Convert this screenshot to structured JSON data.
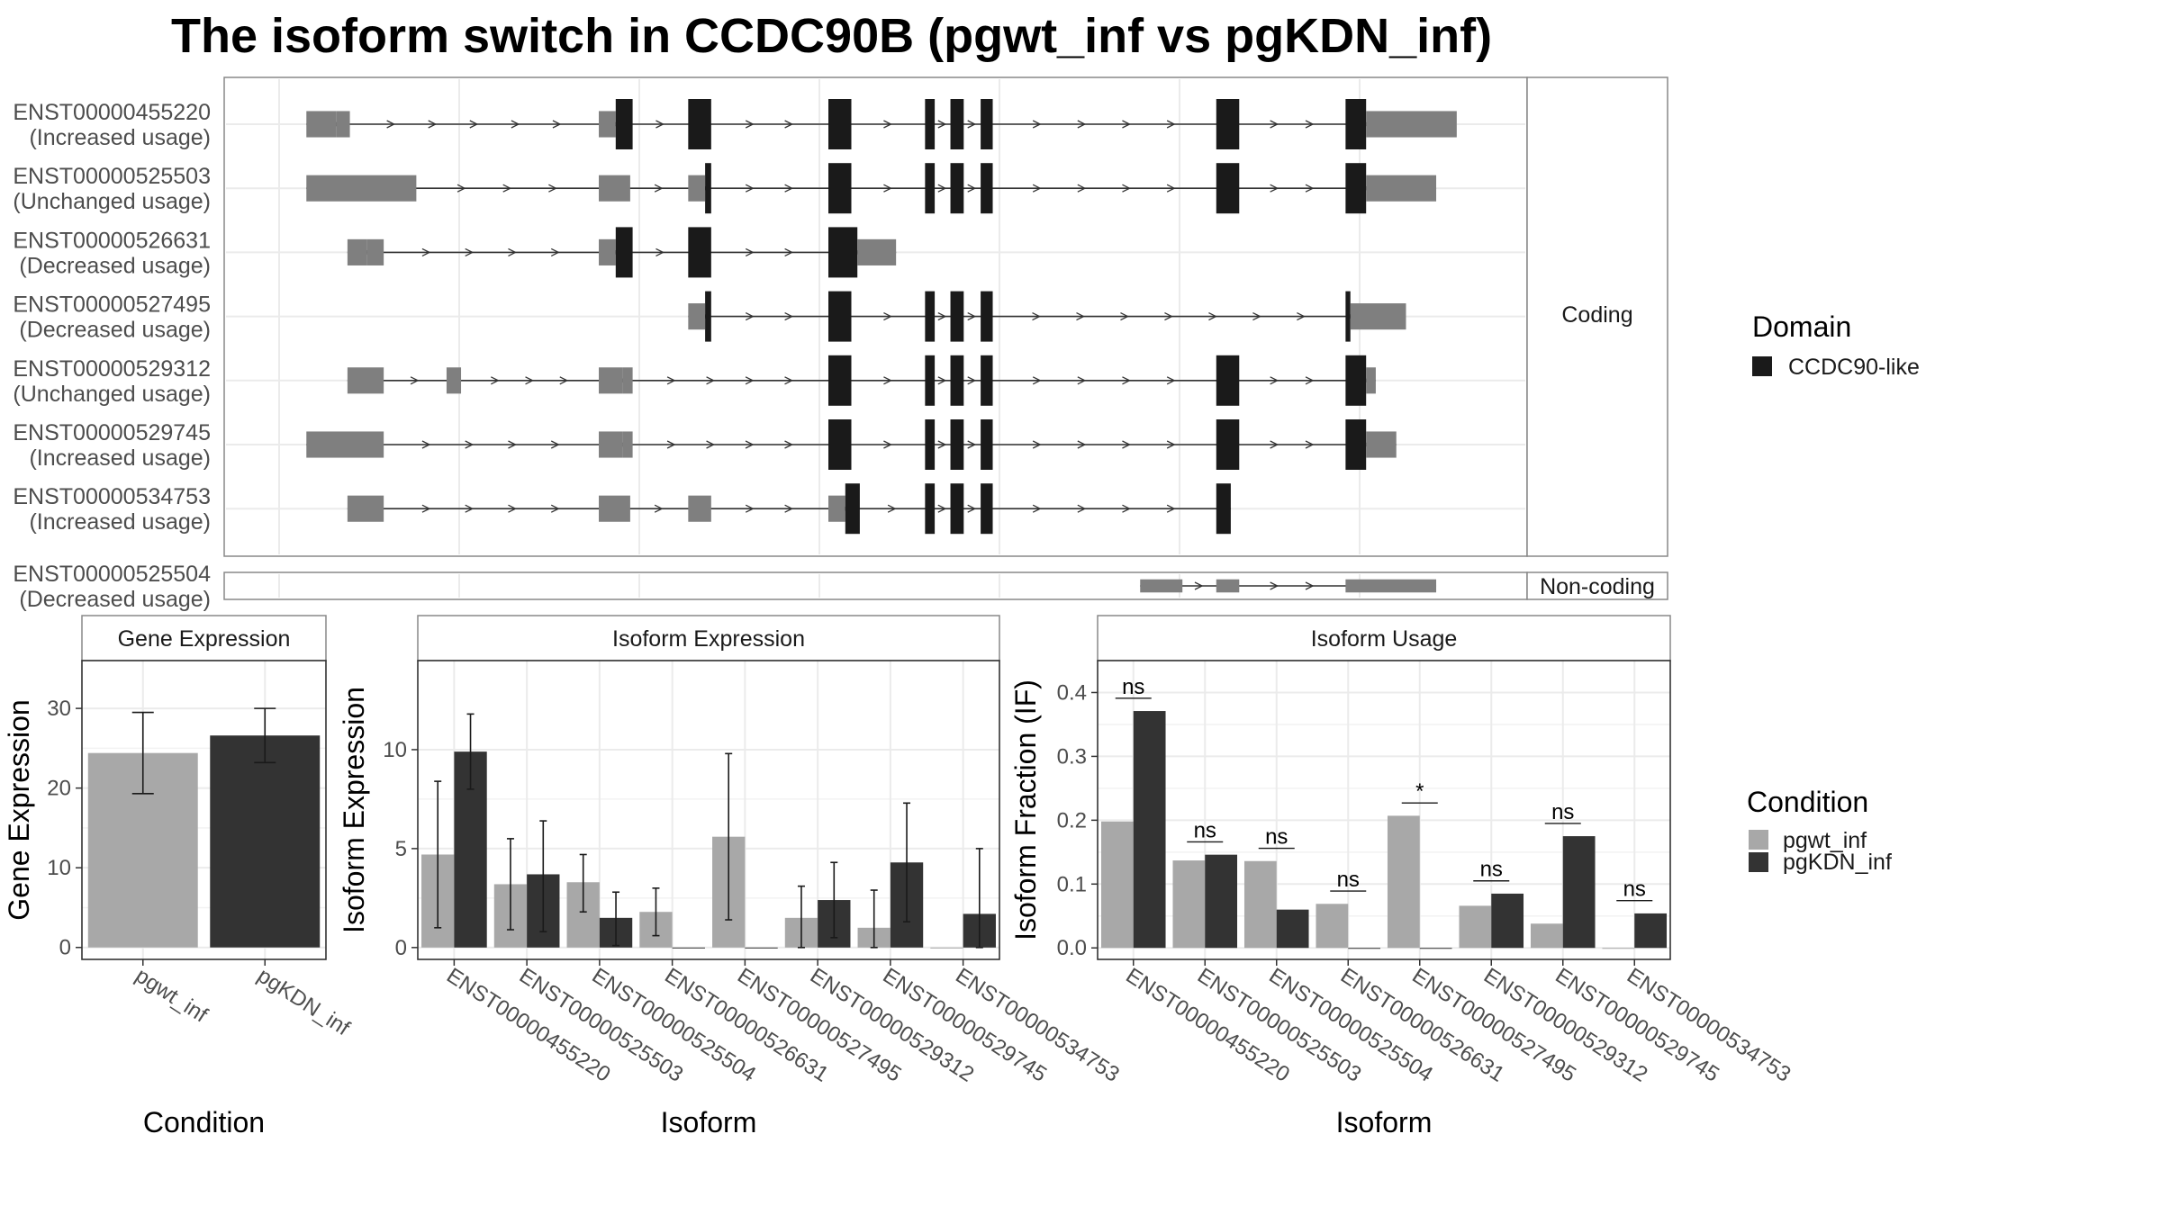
{
  "title": "The isoform switch in CCDC90B (pgwt_inf vs pgKDN_inf)",
  "colors": {
    "utr": "#7f7f7f",
    "cds": "#1a1a1a",
    "pgwt_inf": "#a8a8a8",
    "pgKDN_inf": "#333333",
    "panel_border": "#888888",
    "grid": "#ebebeb",
    "axis_text": "#4d4d4d"
  },
  "structure_panel": {
    "coding_label": "Coding",
    "noncoding_label": "Non-coding",
    "coordinate_range": [
      0,
      1000
    ],
    "coding_transcripts": [
      {
        "id": "ENST00000455220",
        "usage": "(Increased usage)",
        "span": [
          30,
          917
        ],
        "exons": [
          {
            "s": 30,
            "e": 55,
            "t": "utr"
          },
          {
            "s": 55,
            "e": 66,
            "t": "utr"
          },
          {
            "s": 272,
            "e": 286,
            "t": "utr"
          },
          {
            "s": 286,
            "e": 300,
            "t": "cds"
          },
          {
            "s": 346,
            "e": 365,
            "t": "cds"
          },
          {
            "s": 462,
            "e": 481,
            "t": "cds"
          },
          {
            "s": 542,
            "e": 550,
            "t": "cds"
          },
          {
            "s": 563,
            "e": 574,
            "t": "cds"
          },
          {
            "s": 588,
            "e": 598,
            "t": "cds"
          },
          {
            "s": 783,
            "e": 802,
            "t": "cds"
          },
          {
            "s": 890,
            "e": 907,
            "t": "cds"
          },
          {
            "s": 907,
            "e": 982,
            "t": "utr"
          }
        ]
      },
      {
        "id": "ENST00000525503",
        "usage": "(Unchanged usage)",
        "span": [
          30,
          965
        ],
        "exons": [
          {
            "s": 30,
            "e": 121,
            "t": "utr"
          },
          {
            "s": 272,
            "e": 298,
            "t": "utr"
          },
          {
            "s": 346,
            "e": 360,
            "t": "utr"
          },
          {
            "s": 360,
            "e": 365,
            "t": "cds"
          },
          {
            "s": 462,
            "e": 481,
            "t": "cds"
          },
          {
            "s": 542,
            "e": 550,
            "t": "cds"
          },
          {
            "s": 563,
            "e": 574,
            "t": "cds"
          },
          {
            "s": 588,
            "e": 598,
            "t": "cds"
          },
          {
            "s": 783,
            "e": 802,
            "t": "cds"
          },
          {
            "s": 890,
            "e": 907,
            "t": "cds"
          },
          {
            "s": 907,
            "e": 965,
            "t": "utr"
          }
        ]
      },
      {
        "id": "ENST00000526631",
        "usage": "(Decreased usage)",
        "span": [
          64,
          518
        ],
        "exons": [
          {
            "s": 64,
            "e": 80,
            "t": "utr"
          },
          {
            "s": 80,
            "e": 94,
            "t": "utr"
          },
          {
            "s": 272,
            "e": 286,
            "t": "utr"
          },
          {
            "s": 286,
            "e": 300,
            "t": "cds"
          },
          {
            "s": 346,
            "e": 365,
            "t": "cds"
          },
          {
            "s": 462,
            "e": 486,
            "t": "cds"
          },
          {
            "s": 486,
            "e": 518,
            "t": "utr"
          }
        ]
      },
      {
        "id": "ENST00000527495",
        "usage": "(Decreased usage)",
        "span": [
          346,
          940
        ],
        "exons": [
          {
            "s": 346,
            "e": 360,
            "t": "utr"
          },
          {
            "s": 360,
            "e": 365,
            "t": "cds"
          },
          {
            "s": 462,
            "e": 481,
            "t": "cds"
          },
          {
            "s": 542,
            "e": 550,
            "t": "cds"
          },
          {
            "s": 563,
            "e": 574,
            "t": "cds"
          },
          {
            "s": 588,
            "e": 598,
            "t": "cds"
          },
          {
            "s": 890,
            "e": 894,
            "t": "cds"
          },
          {
            "s": 894,
            "e": 940,
            "t": "utr"
          }
        ]
      },
      {
        "id": "ENST00000529312",
        "usage": "(Unchanged usage)",
        "span": [
          64,
          915
        ],
        "exons": [
          {
            "s": 64,
            "e": 94,
            "t": "utr"
          },
          {
            "s": 146,
            "e": 158,
            "t": "utr"
          },
          {
            "s": 272,
            "e": 292,
            "t": "utr"
          },
          {
            "s": 292,
            "e": 300,
            "t": "utr"
          },
          {
            "s": 462,
            "e": 481,
            "t": "cds"
          },
          {
            "s": 542,
            "e": 550,
            "t": "cds"
          },
          {
            "s": 563,
            "e": 574,
            "t": "cds"
          },
          {
            "s": 588,
            "e": 598,
            "t": "cds"
          },
          {
            "s": 783,
            "e": 802,
            "t": "cds"
          },
          {
            "s": 890,
            "e": 907,
            "t": "cds"
          },
          {
            "s": 907,
            "e": 915,
            "t": "utr"
          }
        ]
      },
      {
        "id": "ENST00000529745",
        "usage": "(Increased usage)",
        "span": [
          30,
          932
        ],
        "exons": [
          {
            "s": 30,
            "e": 94,
            "t": "utr"
          },
          {
            "s": 272,
            "e": 292,
            "t": "utr"
          },
          {
            "s": 292,
            "e": 300,
            "t": "utr"
          },
          {
            "s": 462,
            "e": 481,
            "t": "cds"
          },
          {
            "s": 542,
            "e": 550,
            "t": "cds"
          },
          {
            "s": 563,
            "e": 574,
            "t": "cds"
          },
          {
            "s": 588,
            "e": 598,
            "t": "cds"
          },
          {
            "s": 783,
            "e": 802,
            "t": "cds"
          },
          {
            "s": 890,
            "e": 907,
            "t": "cds"
          },
          {
            "s": 907,
            "e": 932,
            "t": "utr"
          }
        ]
      },
      {
        "id": "ENST00000534753",
        "usage": "(Increased usage)",
        "span": [
          64,
          795
        ],
        "exons": [
          {
            "s": 64,
            "e": 94,
            "t": "utr"
          },
          {
            "s": 272,
            "e": 298,
            "t": "utr"
          },
          {
            "s": 346,
            "e": 365,
            "t": "utr"
          },
          {
            "s": 462,
            "e": 476,
            "t": "utr"
          },
          {
            "s": 476,
            "e": 488,
            "t": "cds"
          },
          {
            "s": 542,
            "e": 550,
            "t": "cds"
          },
          {
            "s": 563,
            "e": 574,
            "t": "cds"
          },
          {
            "s": 588,
            "e": 598,
            "t": "cds"
          },
          {
            "s": 783,
            "e": 795,
            "t": "cds"
          }
        ]
      }
    ],
    "noncoding_transcripts": [
      {
        "id": "ENST00000525504",
        "usage": "(Decreased usage)",
        "span": [
          720,
          965
        ],
        "exons": [
          {
            "s": 720,
            "e": 755,
            "t": "utr"
          },
          {
            "s": 783,
            "e": 802,
            "t": "utr"
          },
          {
            "s": 890,
            "e": 965,
            "t": "utr"
          }
        ]
      }
    ]
  },
  "domain_legend": {
    "title": "Domain",
    "entries": [
      "CCDC90-like"
    ]
  },
  "condition_legend": {
    "title": "Condition",
    "entries": [
      "pgwt_inf",
      "pgKDN_inf"
    ]
  },
  "chart_data": [
    {
      "type": "bar",
      "title": "Gene Expression",
      "xlabel": "Condition",
      "ylabel": "Gene Expression",
      "categories": [
        "pgwt_inf",
        "pgKDN_inf"
      ],
      "values": [
        24.4,
        26.6
      ],
      "error_low": [
        19.3,
        23.2
      ],
      "error_high": [
        29.5,
        30.0
      ],
      "ylim": [
        -1.5,
        36
      ],
      "yticks": [
        0,
        10,
        20,
        30
      ]
    },
    {
      "type": "bar",
      "title": "Isoform Expression",
      "xlabel": "Isoform",
      "ylabel": "Isoform Expression",
      "categories": [
        "ENST00000455220",
        "ENST00000525503",
        "ENST00000525504",
        "ENST00000526631",
        "ENST00000527495",
        "ENST00000529312",
        "ENST00000529745",
        "ENST00000534753"
      ],
      "series": [
        {
          "name": "pgwt_inf",
          "values": [
            4.7,
            3.2,
            3.3,
            1.8,
            5.6,
            1.5,
            1.0,
            0.0
          ],
          "error_low": [
            1.0,
            0.9,
            1.8,
            0.6,
            1.4,
            0.0,
            0.0,
            0.0
          ],
          "error_high": [
            8.4,
            5.5,
            4.7,
            3.0,
            9.8,
            3.1,
            2.9,
            0.0
          ]
        },
        {
          "name": "pgKDN_inf",
          "values": [
            9.9,
            3.7,
            1.5,
            0.0,
            0.0,
            2.4,
            4.3,
            1.7
          ],
          "error_low": [
            8.0,
            0.8,
            0.1,
            0.0,
            0.0,
            0.5,
            1.3,
            0.0
          ],
          "error_high": [
            11.8,
            6.4,
            2.8,
            0.0,
            0.0,
            4.3,
            7.3,
            5.0
          ]
        }
      ],
      "ylim": [
        -0.6,
        14.5
      ],
      "yticks": [
        0,
        5,
        10
      ]
    },
    {
      "type": "bar",
      "title": "Isoform Usage",
      "xlabel": "Isoform",
      "ylabel": "Isoform Fraction (IF)",
      "categories": [
        "ENST00000455220",
        "ENST00000525503",
        "ENST00000525504",
        "ENST00000526631",
        "ENST00000527495",
        "ENST00000529312",
        "ENST00000529745",
        "ENST00000534753"
      ],
      "series": [
        {
          "name": "pgwt_inf",
          "values": [
            0.198,
            0.137,
            0.136,
            0.069,
            0.207,
            0.066,
            0.038,
            0.0
          ]
        },
        {
          "name": "pgKDN_inf",
          "values": [
            0.371,
            0.146,
            0.06,
            0.0,
            0.0,
            0.085,
            0.175,
            0.054
          ]
        }
      ],
      "significance": [
        "ns",
        "ns",
        "ns",
        "ns",
        "*",
        "ns",
        "ns",
        "ns"
      ],
      "significance_y": [
        0.391,
        0.166,
        0.156,
        0.089,
        0.227,
        0.105,
        0.195,
        0.074
      ],
      "ylim": [
        -0.018,
        0.45
      ],
      "yticks": [
        0.0,
        0.1,
        0.2,
        0.3,
        0.4
      ],
      "ytick_labels": [
        "0.0",
        "0.1",
        "0.2",
        "0.3",
        "0.4"
      ]
    }
  ]
}
